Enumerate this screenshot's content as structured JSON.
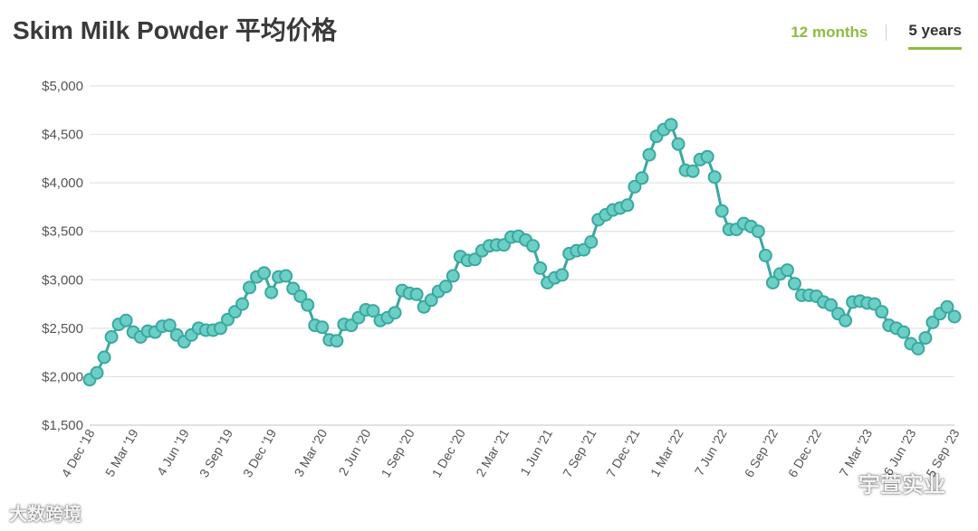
{
  "header": {
    "title": "Skim Milk Powder 平均价格",
    "tabs": [
      {
        "label": "12 months",
        "active": false
      },
      {
        "label": "5 years",
        "active": true
      }
    ]
  },
  "colors": {
    "line": "#3aa8a0",
    "marker_fill": "#6ccfc6",
    "active_tab_underline": "#8dbb3f",
    "inactive_tab": "#8dbb3f"
  },
  "watermarks": {
    "left": "大数跨境",
    "right": "宇萱实业"
  },
  "chart_data": {
    "type": "line",
    "ylim": [
      1500,
      5000
    ],
    "yticks": [
      1500,
      2000,
      2500,
      3000,
      3500,
      4000,
      4500,
      5000
    ],
    "ytick_labels": [
      "$1,500",
      "$2,000",
      "$2,500",
      "$3,000",
      "$3,500",
      "$4,000",
      "$4,500",
      "$5,000"
    ],
    "grid": true,
    "xtick_labels": [
      "4 Dec '18",
      "5 Mar '19",
      "4 Jun '19",
      "3 Sep '19",
      "3 Dec '19",
      "3 Mar '20",
      "2 Jun '20",
      "1 Sep '20",
      "1 Dec '20",
      "2 Mar '21",
      "1 Jun '21",
      "7 Sep '21",
      "7 Dec '21",
      "1 Mar '22",
      "7 Jun '22",
      "6 Sep '22",
      "6 Dec '22",
      "7 Mar '23",
      "6 Jun '23",
      "5 Sep '23"
    ],
    "xtick_index": [
      0,
      6,
      13,
      19,
      25,
      32,
      38,
      44,
      51,
      57,
      63,
      69,
      75,
      81,
      87,
      94,
      100,
      107,
      113,
      119
    ],
    "values": [
      1970,
      2040,
      2200,
      2410,
      2540,
      2580,
      2460,
      2410,
      2470,
      2460,
      2520,
      2530,
      2430,
      2360,
      2430,
      2500,
      2480,
      2480,
      2500,
      2590,
      2670,
      2750,
      2920,
      3030,
      3070,
      2870,
      3030,
      3040,
      2910,
      2830,
      2740,
      2530,
      2510,
      2380,
      2370,
      2540,
      2530,
      2610,
      2690,
      2680,
      2580,
      2610,
      2660,
      2890,
      2860,
      2850,
      2720,
      2790,
      2880,
      2930,
      3040,
      3240,
      3200,
      3210,
      3300,
      3350,
      3360,
      3360,
      3440,
      3450,
      3410,
      3350,
      3120,
      2970,
      3020,
      3050,
      3270,
      3300,
      3310,
      3390,
      3620,
      3670,
      3720,
      3740,
      3770,
      3960,
      4050,
      4290,
      4480,
      4550,
      4600,
      4400,
      4130,
      4120,
      4240,
      4270,
      4060,
      3710,
      3520,
      3520,
      3580,
      3550,
      3500,
      3250,
      2970,
      3060,
      3100,
      2960,
      2840,
      2840,
      2830,
      2770,
      2740,
      2650,
      2580,
      2770,
      2780,
      2760,
      2750,
      2670,
      2530,
      2500,
      2460,
      2340,
      2290,
      2400,
      2560,
      2650,
      2720,
      2620
    ]
  }
}
